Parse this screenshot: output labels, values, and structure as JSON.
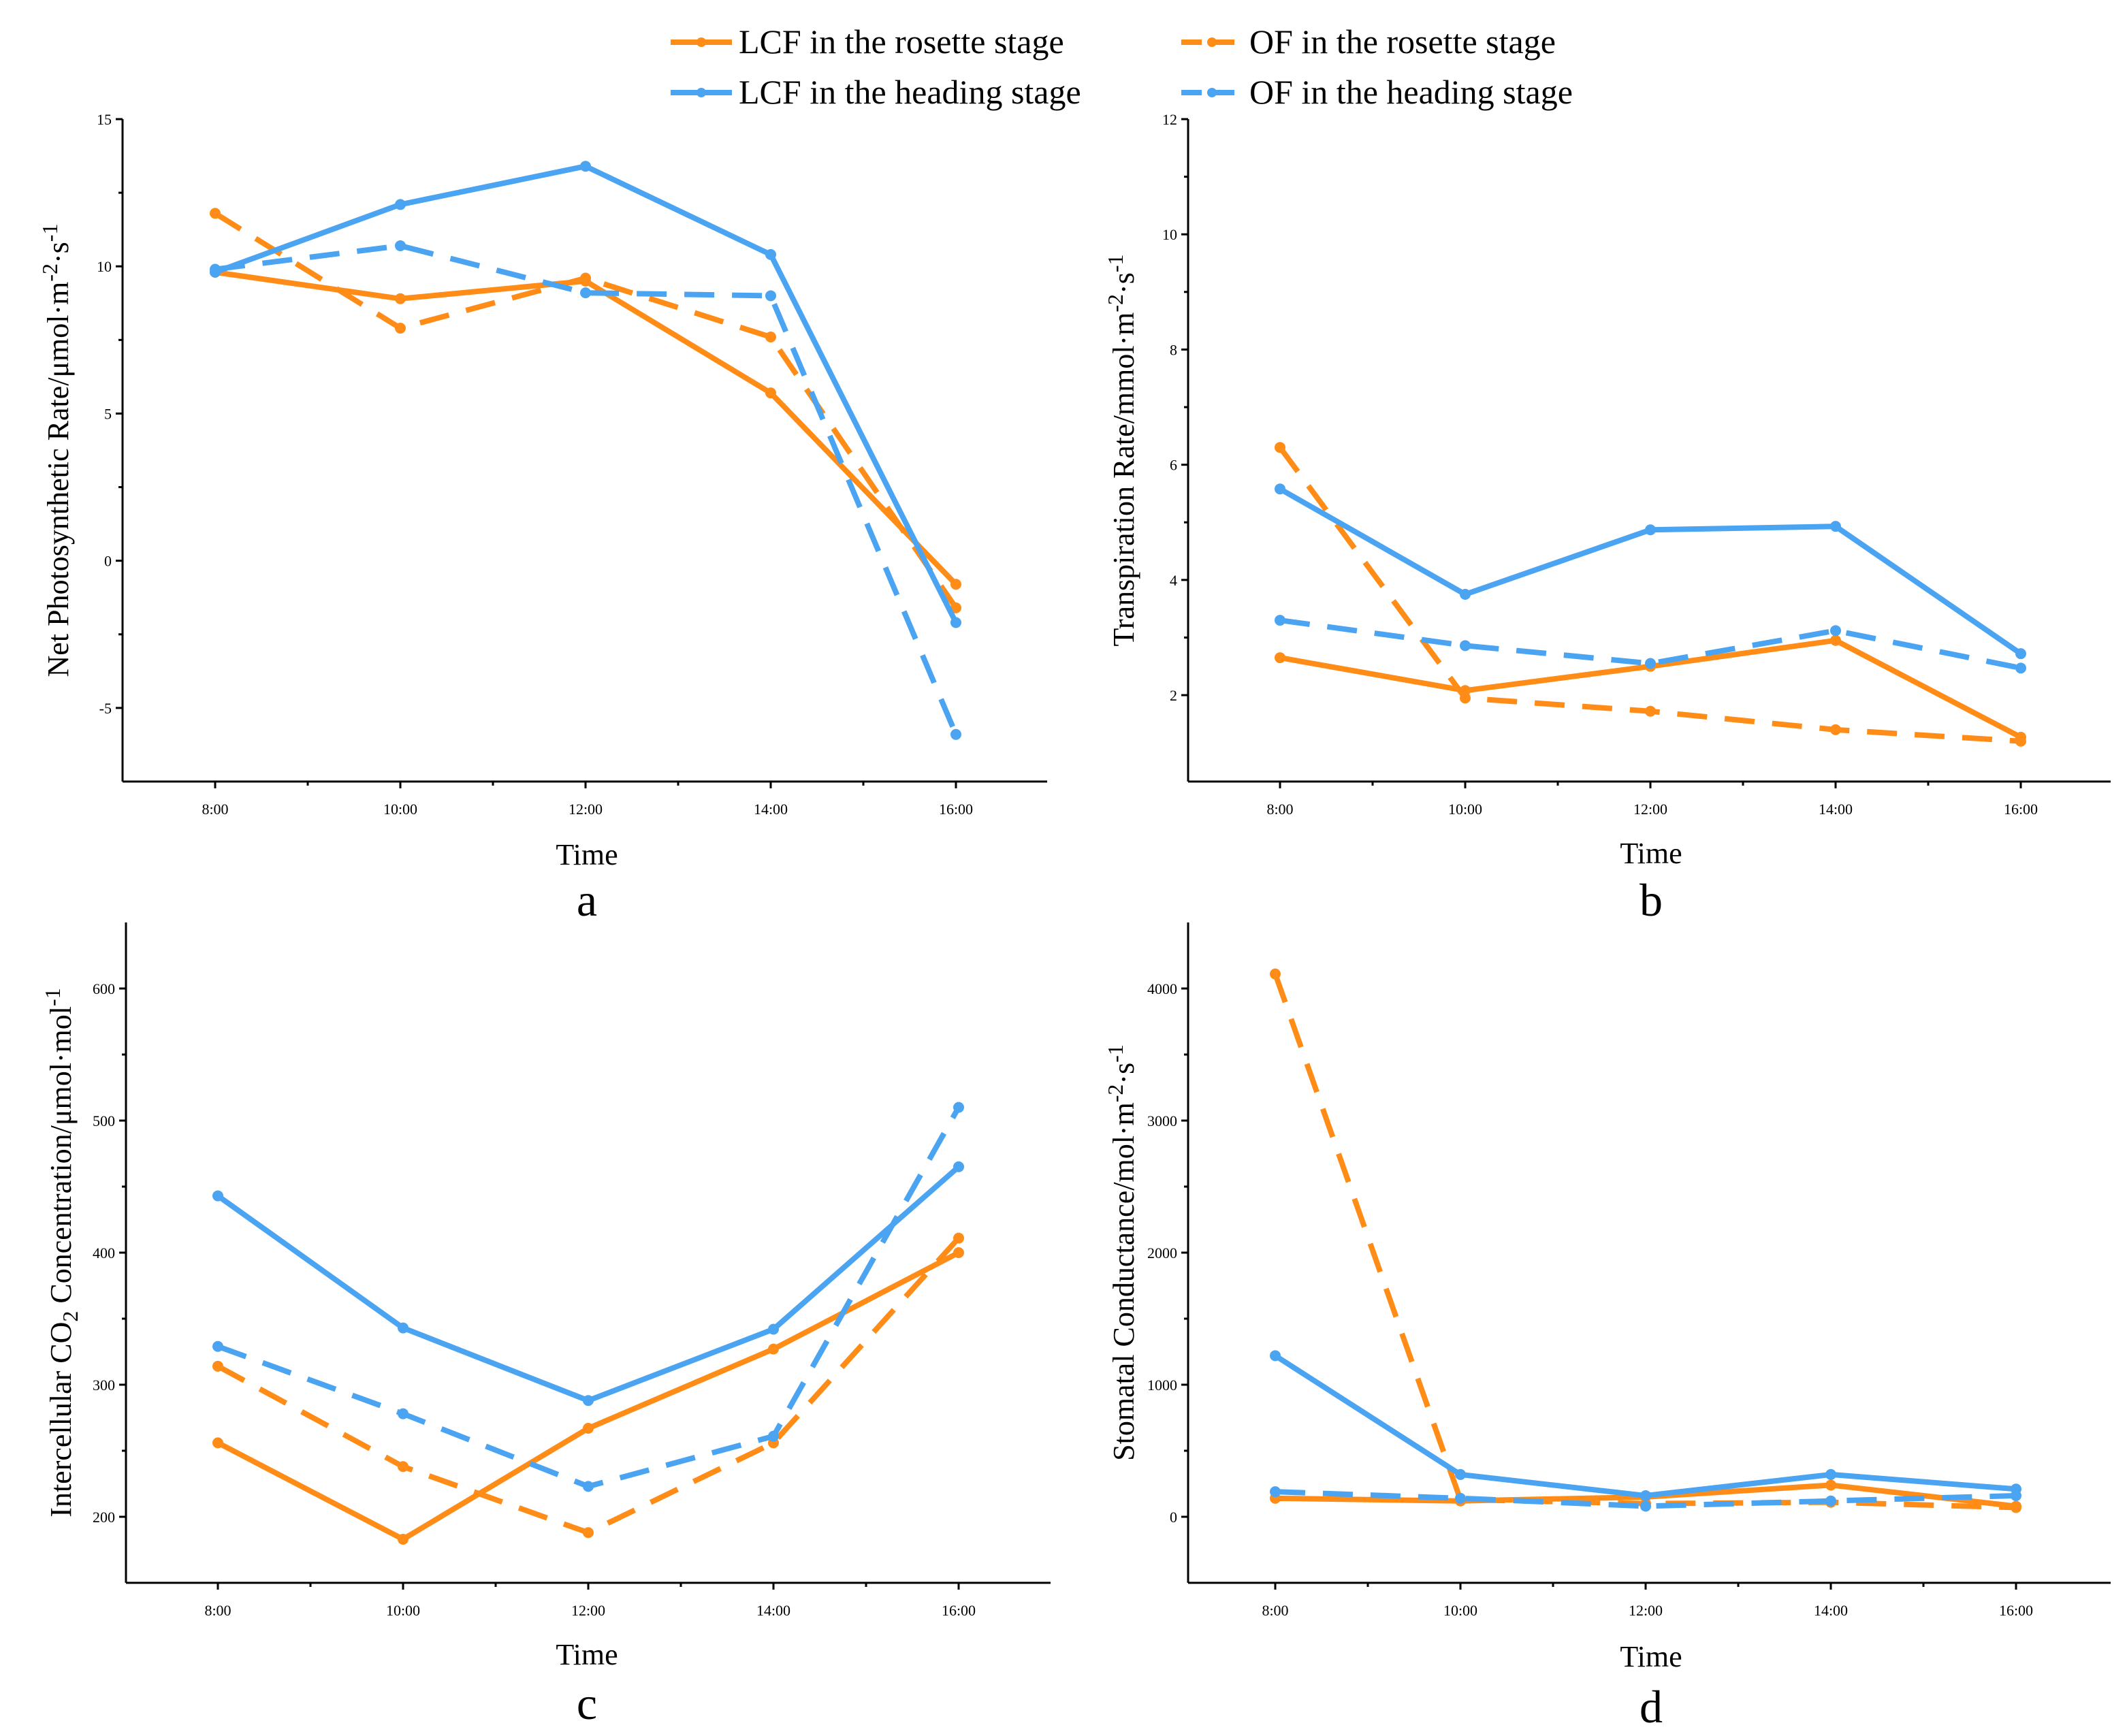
{
  "legend": [
    {
      "name": "LCF in the rosette stage",
      "color": "#ff8c16",
      "dash": false
    },
    {
      "name": "OF in the rosette stage",
      "color": "#ff8c16",
      "dash": true
    },
    {
      "name": "LCF in the heading stage",
      "color": "#4aa4f2",
      "dash": false
    },
    {
      "name": "OF in the heading stage",
      "color": "#4aa4f2",
      "dash": true
    }
  ],
  "chart_data": [
    {
      "type": "line",
      "panel": "a",
      "xlabel": "Time",
      "ylabel": "Net Photosynthetic Rate/μmol·m",
      "ylabel_sup1": "-2",
      "ylabel_mid": "·s",
      "ylabel_sup2": "-1",
      "categories": [
        "8:00",
        "10:00",
        "12:00",
        "14:00",
        "16:00"
      ],
      "ylim": [
        -7.5,
        15
      ],
      "yticks": [
        -5,
        0,
        5,
        10,
        15
      ],
      "series": [
        {
          "name": "LCF in the rosette stage",
          "values": [
            9.8,
            8.9,
            9.5,
            5.7,
            -0.8
          ]
        },
        {
          "name": "OF in the rosette stage",
          "values": [
            11.8,
            7.9,
            9.6,
            7.6,
            -1.6
          ]
        },
        {
          "name": "LCF in the heading stage",
          "values": [
            9.8,
            12.1,
            13.4,
            10.4,
            -2.1
          ]
        },
        {
          "name": "OF in the heading stage",
          "values": [
            9.9,
            10.7,
            9.1,
            9.0,
            -5.9
          ]
        }
      ]
    },
    {
      "type": "line",
      "panel": "b",
      "xlabel": "Time",
      "ylabel": "Transpiration Rate/mmol·m",
      "ylabel_sup1": "-2",
      "ylabel_mid": "·s",
      "ylabel_sup2": "-1",
      "categories": [
        "8:00",
        "10:00",
        "12:00",
        "14:00",
        "16:00"
      ],
      "ylim": [
        0.5,
        12
      ],
      "yticks": [
        2,
        4,
        6,
        8,
        10,
        12
      ],
      "series": [
        {
          "name": "LCF in the rosette stage",
          "values": [
            2.65,
            2.08,
            2.5,
            2.95,
            1.27
          ]
        },
        {
          "name": "OF in the rosette stage",
          "values": [
            6.3,
            1.95,
            1.72,
            1.4,
            1.2
          ]
        },
        {
          "name": "LCF in the heading stage",
          "values": [
            5.58,
            3.75,
            4.87,
            4.93,
            2.72
          ]
        },
        {
          "name": "OF in the heading stage",
          "values": [
            3.3,
            2.86,
            2.55,
            3.12,
            2.47
          ]
        }
      ]
    },
    {
      "type": "line",
      "panel": "c",
      "xlabel": "Time",
      "ylabel": "Intercellular CO",
      "ylabel_sub": "2",
      "ylabel_mid": " Concentration/μmol·mol",
      "ylabel_sup2": "-1",
      "categories": [
        "8:00",
        "10:00",
        "12:00",
        "14:00",
        "16:00"
      ],
      "ylim": [
        150,
        650
      ],
      "yticks": [
        200,
        300,
        400,
        500,
        600
      ],
      "series": [
        {
          "name": "LCF in the rosette stage",
          "values": [
            256,
            183,
            267,
            327,
            400
          ]
        },
        {
          "name": "OF in the rosette stage",
          "values": [
            314,
            238,
            188,
            256,
            411
          ]
        },
        {
          "name": "LCF in the heading stage",
          "values": [
            443,
            343,
            288,
            342,
            465
          ]
        },
        {
          "name": "OF in the heading stage",
          "values": [
            329,
            278,
            223,
            261,
            510
          ]
        }
      ]
    },
    {
      "type": "line",
      "panel": "d",
      "xlabel": "Time",
      "ylabel": "Stomatal Conductance/mol·m",
      "ylabel_sup1": "-2",
      "ylabel_mid": "·s",
      "ylabel_sup2": "-1",
      "categories": [
        "8:00",
        "10:00",
        "12:00",
        "14:00",
        "16:00"
      ],
      "ylim": [
        -500,
        4500
      ],
      "yticks": [
        0,
        1000,
        2000,
        3000,
        4000
      ],
      "series": [
        {
          "name": "LCF in the rosette stage",
          "values": [
            140,
            120,
            150,
            240,
            80
          ]
        },
        {
          "name": "OF in the rosette stage",
          "values": [
            4110,
            130,
            100,
            110,
            70
          ]
        },
        {
          "name": "LCF in the heading stage",
          "values": [
            1220,
            320,
            160,
            320,
            210
          ]
        },
        {
          "name": "OF in the heading stage",
          "values": [
            190,
            140,
            80,
            120,
            160
          ]
        }
      ]
    }
  ]
}
